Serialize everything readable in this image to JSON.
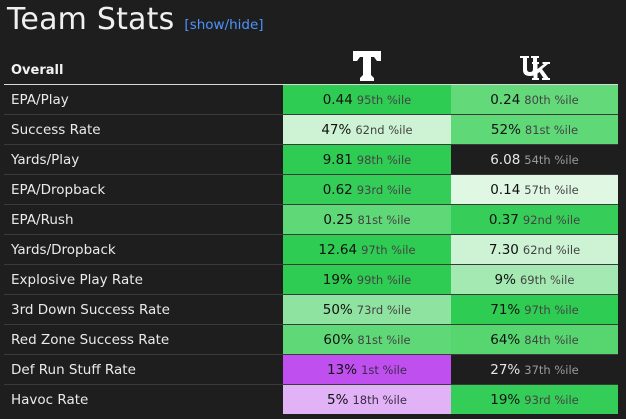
{
  "header": {
    "title": "Team Stats",
    "toggle_label": "[show/hide]"
  },
  "table": {
    "section_label": "Overall",
    "teams": [
      {
        "logo": "tennessee-power-t-logo",
        "color": "#ffffff"
      },
      {
        "logo": "kentucky-uk-logo",
        "color": "#ffffff"
      }
    ],
    "rows": [
      {
        "label": "EPA/Play",
        "t": {
          "value": "0.44",
          "pct": "95th %ile",
          "bg": "#2ecc52"
        },
        "uk": {
          "value": "0.24",
          "pct": "80th %ile",
          "bg": "#63d97a"
        }
      },
      {
        "label": "Success Rate",
        "t": {
          "value": "47%",
          "pct": "62nd %ile",
          "bg": "#cdf3d4"
        },
        "uk": {
          "value": "52%",
          "pct": "81st %ile",
          "bg": "#5fd877"
        }
      },
      {
        "label": "Yards/Play",
        "t": {
          "value": "9.81",
          "pct": "98th %ile",
          "bg": "#2ecc52"
        },
        "uk": {
          "value": "6.08",
          "pct": "54th %ile",
          "bg": "#1e1e1e"
        }
      },
      {
        "label": "EPA/Dropback",
        "t": {
          "value": "0.62",
          "pct": "93rd %ile",
          "bg": "#34cd57"
        },
        "uk": {
          "value": "0.14",
          "pct": "57th %ile",
          "bg": "#dff7e3"
        }
      },
      {
        "label": "EPA/Rush",
        "t": {
          "value": "0.25",
          "pct": "81st %ile",
          "bg": "#5fd877"
        },
        "uk": {
          "value": "0.37",
          "pct": "92nd %ile",
          "bg": "#36ce59"
        }
      },
      {
        "label": "Yards/Dropback",
        "t": {
          "value": "12.64",
          "pct": "97th %ile",
          "bg": "#2ecc52"
        },
        "uk": {
          "value": "7.30",
          "pct": "62nd %ile",
          "bg": "#cdf3d4"
        }
      },
      {
        "label": "Explosive Play Rate",
        "t": {
          "value": "19%",
          "pct": "99th %ile",
          "bg": "#2ecc52"
        },
        "uk": {
          "value": "9%",
          "pct": "69th %ile",
          "bg": "#a4e9b1"
        }
      },
      {
        "label": "3rd Down Success Rate",
        "t": {
          "value": "50%",
          "pct": "73rd %ile",
          "bg": "#8fe3a0"
        },
        "uk": {
          "value": "71%",
          "pct": "97th %ile",
          "bg": "#2ecc52"
        }
      },
      {
        "label": "Red Zone Success Rate",
        "t": {
          "value": "60%",
          "pct": "81st %ile",
          "bg": "#5fd877"
        },
        "uk": {
          "value": "64%",
          "pct": "84th %ile",
          "bg": "#57d670"
        }
      },
      {
        "label": "Def Run Stuff Rate",
        "t": {
          "value": "13%",
          "pct": "1st %ile",
          "bg": "#c04ff0"
        },
        "uk": {
          "value": "27%",
          "pct": "37th %ile",
          "bg": "#1e1e1e"
        }
      },
      {
        "label": "Havoc Rate",
        "t": {
          "value": "5%",
          "pct": "18th %ile",
          "bg": "#e2b2f7"
        },
        "uk": {
          "value": "19%",
          "pct": "93rd %ile",
          "bg": "#34cd57"
        }
      }
    ]
  }
}
